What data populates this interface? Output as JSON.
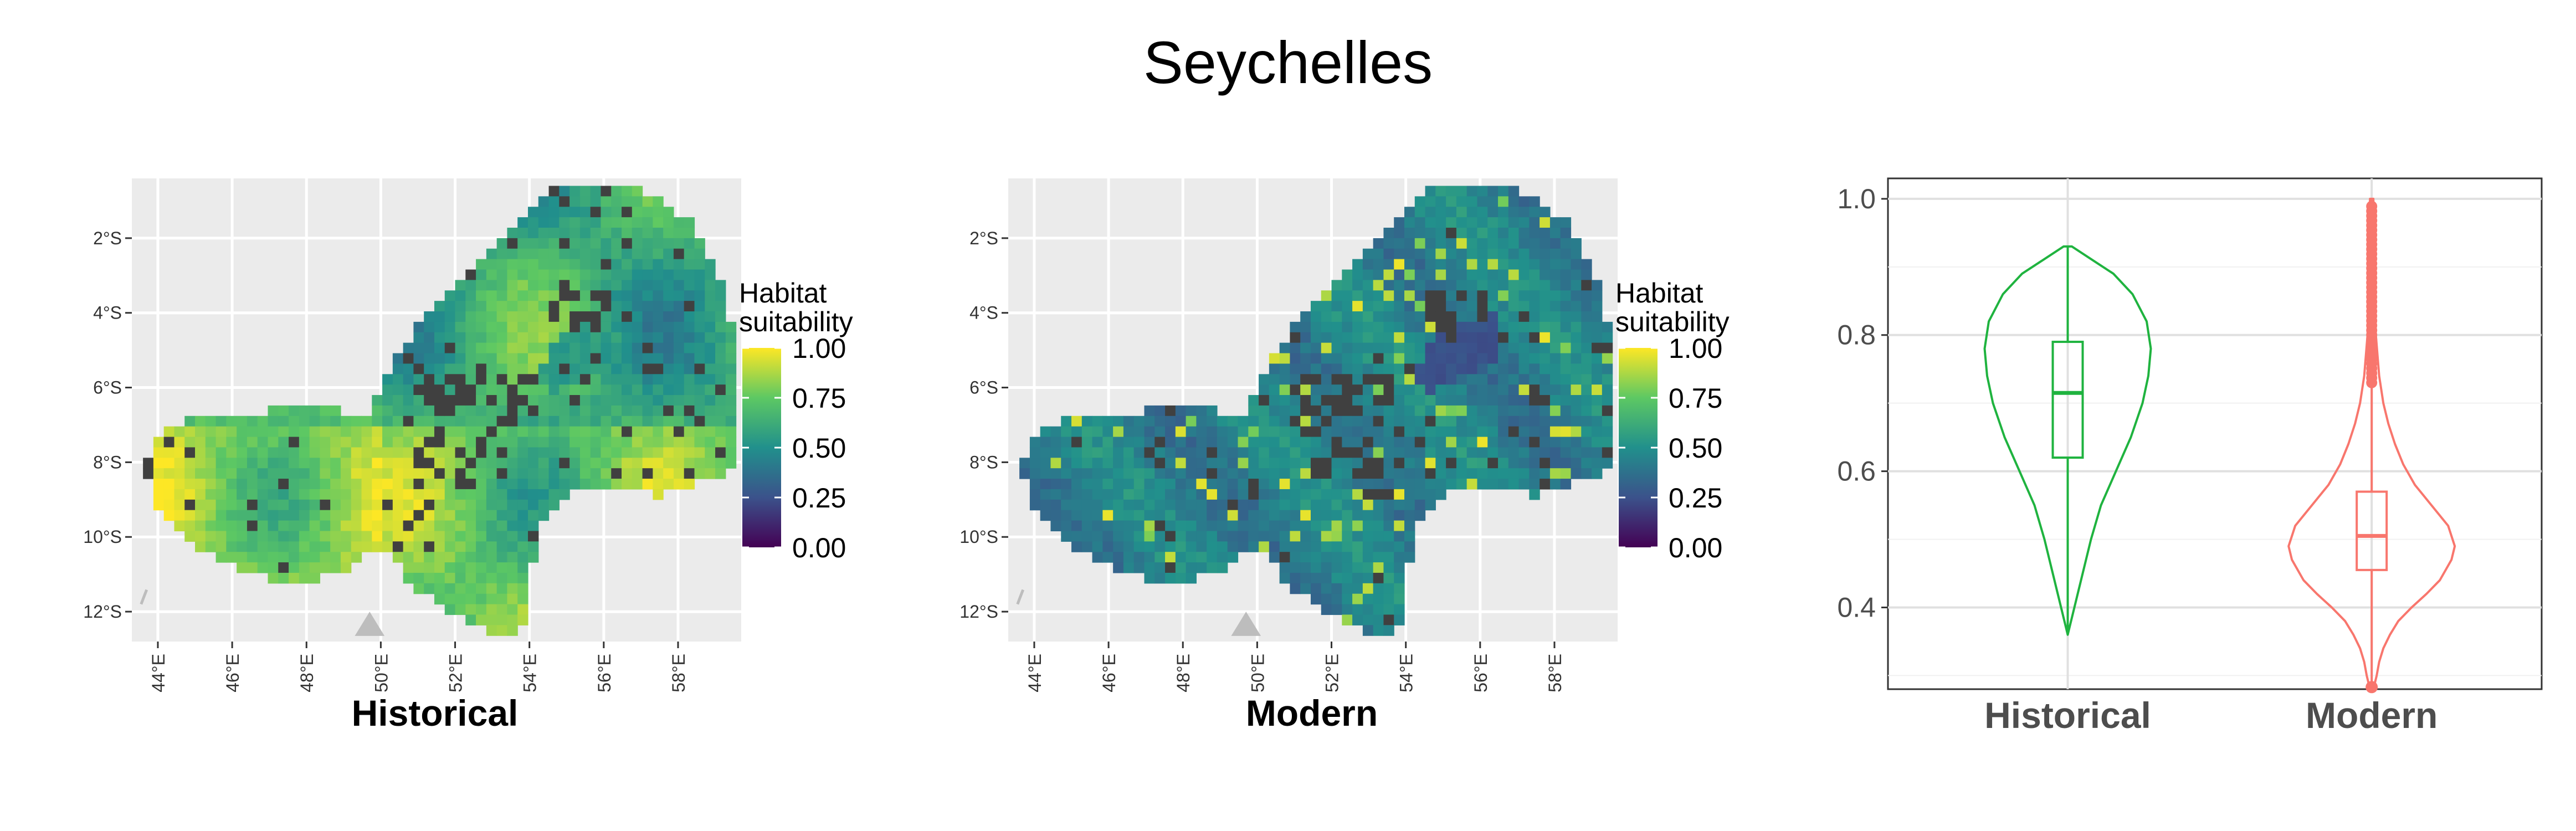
{
  "figure": {
    "title": "Seychelles"
  },
  "colors": {
    "panel_bg": "#EBEBEB",
    "grid": "#FFFFFF",
    "no_data": "#404040",
    "historical": "#1FB33F",
    "modern": "#F8766D",
    "viridis": [
      "#440154",
      "#3B528B",
      "#21908C",
      "#5DC863",
      "#FDE725"
    ]
  },
  "legend": {
    "title_line1": "Habitat",
    "title_line2": "suitability",
    "ticks": [
      "1.00",
      "0.75",
      "0.50",
      "0.25",
      "0.00"
    ]
  },
  "maps": [
    {
      "caption": "Historical",
      "key": "historical"
    },
    {
      "caption": "Modern",
      "key": "modern"
    }
  ],
  "chart_data": [
    {
      "type": "heatmap",
      "name": "Historical",
      "xlabel": "",
      "ylabel": "",
      "x_ticks": [
        "44°E",
        "46°E",
        "48°E",
        "50°E",
        "52°E",
        "54°E",
        "56°E",
        "58°E"
      ],
      "y_ticks": [
        "2°S",
        "4°S",
        "6°S",
        "8°S",
        "10°S",
        "12°S"
      ],
      "xlim": [
        43.3,
        59.7
      ],
      "ylim": [
        -12.8,
        -0.4
      ],
      "value_range": [
        0,
        1
      ],
      "dominant_levels": "mostly 0.55-0.95; yellow-green, higher in west and south"
    },
    {
      "type": "heatmap",
      "name": "Modern",
      "xlabel": "",
      "ylabel": "",
      "x_ticks": [
        "44°E",
        "46°E",
        "48°E",
        "50°E",
        "52°E",
        "54°E",
        "56°E",
        "58°E"
      ],
      "y_ticks": [
        "2°S",
        "4°S",
        "6°S",
        "8°S",
        "10°S",
        "12°S"
      ],
      "xlim": [
        43.3,
        59.7
      ],
      "ylim": [
        -12.8,
        -0.4
      ],
      "value_range": [
        0,
        1
      ],
      "dominant_levels": "mostly 0.35-0.6; teal with scattered high-suitability streaks"
    },
    {
      "type": "violin",
      "categories": [
        "Historical",
        "Modern"
      ],
      "ylim": [
        0.28,
        1.03
      ],
      "y_ticks": [
        0.4,
        0.6,
        0.8,
        1.0
      ],
      "grid": true,
      "series": [
        {
          "name": "Historical",
          "min": 0.36,
          "q1": 0.62,
          "median": 0.715,
          "q3": 0.79,
          "max": 0.93,
          "density": [
            [
              0.36,
              0.0
            ],
            [
              0.4,
              0.08
            ],
            [
              0.45,
              0.18
            ],
            [
              0.5,
              0.28
            ],
            [
              0.55,
              0.4
            ],
            [
              0.6,
              0.58
            ],
            [
              0.65,
              0.76
            ],
            [
              0.7,
              0.9
            ],
            [
              0.74,
              0.97
            ],
            [
              0.78,
              1.0
            ],
            [
              0.82,
              0.95
            ],
            [
              0.86,
              0.78
            ],
            [
              0.89,
              0.55
            ],
            [
              0.91,
              0.3
            ],
            [
              0.93,
              0.05
            ]
          ]
        },
        {
          "name": "Modern",
          "min": 0.28,
          "q1": 0.455,
          "median": 0.505,
          "q3": 0.57,
          "max": 1.0,
          "outliers_from": 0.73,
          "density": [
            [
              0.28,
              0.02
            ],
            [
              0.3,
              0.06
            ],
            [
              0.32,
              0.09
            ],
            [
              0.34,
              0.14
            ],
            [
              0.36,
              0.22
            ],
            [
              0.38,
              0.32
            ],
            [
              0.4,
              0.48
            ],
            [
              0.42,
              0.66
            ],
            [
              0.44,
              0.82
            ],
            [
              0.47,
              0.96
            ],
            [
              0.49,
              1.0
            ],
            [
              0.52,
              0.92
            ],
            [
              0.55,
              0.72
            ],
            [
              0.58,
              0.52
            ],
            [
              0.61,
              0.38
            ],
            [
              0.64,
              0.28
            ],
            [
              0.67,
              0.2
            ],
            [
              0.7,
              0.14
            ],
            [
              0.74,
              0.09
            ],
            [
              0.8,
              0.05
            ],
            [
              0.9,
              0.03
            ],
            [
              1.0,
              0.02
            ]
          ]
        }
      ]
    }
  ]
}
